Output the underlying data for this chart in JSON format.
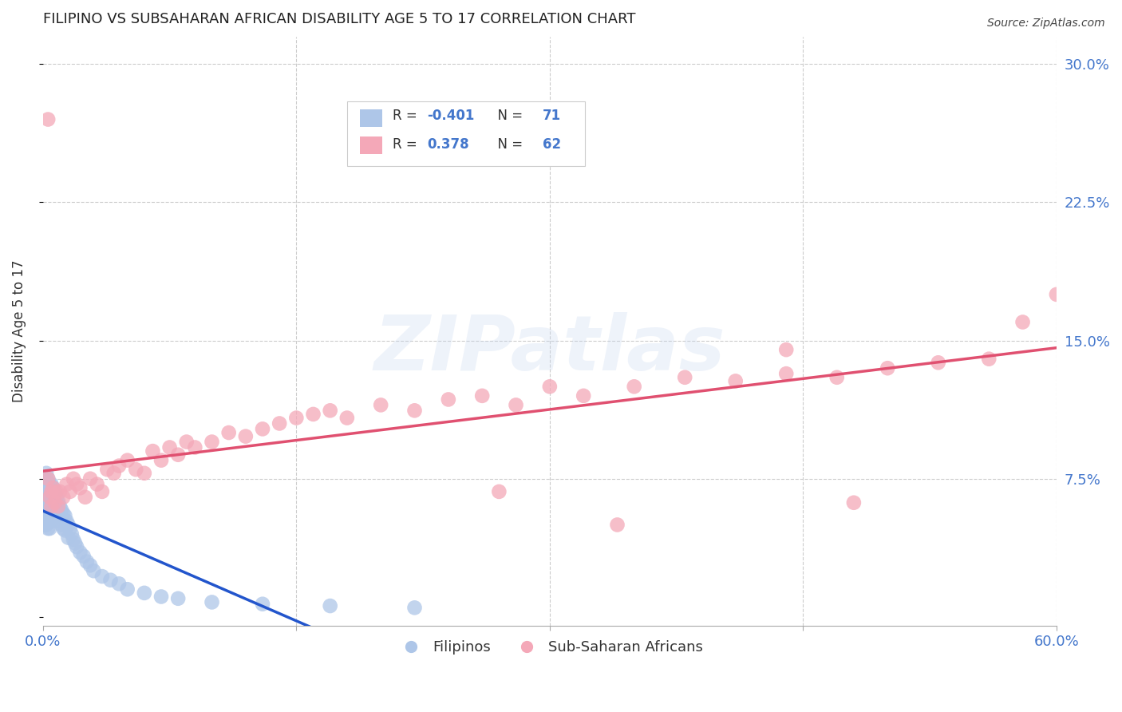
{
  "title": "FILIPINO VS SUBSAHARAN AFRICAN DISABILITY AGE 5 TO 17 CORRELATION CHART",
  "source": "Source: ZipAtlas.com",
  "ylabel": "Disability Age 5 to 17",
  "yticks": [
    0.0,
    0.075,
    0.15,
    0.225,
    0.3
  ],
  "ytick_labels": [
    "",
    "7.5%",
    "15.0%",
    "22.5%",
    "30.0%"
  ],
  "xlim": [
    0.0,
    0.6
  ],
  "ylim": [
    -0.005,
    0.315
  ],
  "grid_color": "#cccccc",
  "background_color": "#ffffff",
  "filipino_color": "#aec6e8",
  "subsaharan_color": "#f4a8b8",
  "filipino_line_color": "#2255cc",
  "subsaharan_line_color": "#e05070",
  "filipino_R": -0.401,
  "filipino_N": 71,
  "subsaharan_R": 0.378,
  "subsaharan_N": 62,
  "title_color": "#222222",
  "axis_label_color": "#4477cc",
  "watermark": "ZIPatlas",
  "filipino_x": [
    0.001,
    0.001,
    0.001,
    0.001,
    0.001,
    0.002,
    0.002,
    0.002,
    0.002,
    0.002,
    0.002,
    0.003,
    0.003,
    0.003,
    0.003,
    0.003,
    0.003,
    0.004,
    0.004,
    0.004,
    0.004,
    0.004,
    0.005,
    0.005,
    0.005,
    0.005,
    0.005,
    0.006,
    0.006,
    0.006,
    0.006,
    0.007,
    0.007,
    0.007,
    0.008,
    0.008,
    0.008,
    0.009,
    0.009,
    0.01,
    0.01,
    0.011,
    0.011,
    0.012,
    0.012,
    0.013,
    0.013,
    0.014,
    0.015,
    0.015,
    0.016,
    0.017,
    0.018,
    0.019,
    0.02,
    0.022,
    0.024,
    0.026,
    0.028,
    0.03,
    0.035,
    0.04,
    0.045,
    0.05,
    0.06,
    0.07,
    0.08,
    0.1,
    0.13,
    0.17,
    0.22
  ],
  "filipino_y": [
    0.075,
    0.068,
    0.062,
    0.055,
    0.05,
    0.078,
    0.07,
    0.065,
    0.06,
    0.055,
    0.05,
    0.075,
    0.07,
    0.065,
    0.06,
    0.055,
    0.048,
    0.072,
    0.065,
    0.06,
    0.055,
    0.048,
    0.072,
    0.068,
    0.063,
    0.058,
    0.052,
    0.07,
    0.065,
    0.06,
    0.055,
    0.068,
    0.063,
    0.057,
    0.065,
    0.06,
    0.055,
    0.063,
    0.055,
    0.06,
    0.052,
    0.058,
    0.05,
    0.056,
    0.048,
    0.055,
    0.047,
    0.052,
    0.05,
    0.043,
    0.048,
    0.045,
    0.042,
    0.04,
    0.038,
    0.035,
    0.033,
    0.03,
    0.028,
    0.025,
    0.022,
    0.02,
    0.018,
    0.015,
    0.013,
    0.011,
    0.01,
    0.008,
    0.007,
    0.006,
    0.005
  ],
  "subsaharan_x": [
    0.003,
    0.004,
    0.005,
    0.006,
    0.007,
    0.008,
    0.009,
    0.01,
    0.012,
    0.014,
    0.016,
    0.018,
    0.02,
    0.022,
    0.025,
    0.028,
    0.032,
    0.035,
    0.038,
    0.042,
    0.045,
    0.05,
    0.055,
    0.06,
    0.065,
    0.07,
    0.075,
    0.08,
    0.085,
    0.09,
    0.1,
    0.11,
    0.12,
    0.13,
    0.14,
    0.15,
    0.16,
    0.17,
    0.18,
    0.2,
    0.22,
    0.24,
    0.26,
    0.28,
    0.3,
    0.32,
    0.35,
    0.38,
    0.41,
    0.44,
    0.47,
    0.5,
    0.53,
    0.56,
    0.27,
    0.34,
    0.48,
    0.003,
    0.44,
    0.005,
    0.6,
    0.58
  ],
  "subsaharan_y": [
    0.27,
    0.065,
    0.06,
    0.07,
    0.062,
    0.068,
    0.06,
    0.068,
    0.065,
    0.072,
    0.068,
    0.075,
    0.072,
    0.07,
    0.065,
    0.075,
    0.072,
    0.068,
    0.08,
    0.078,
    0.082,
    0.085,
    0.08,
    0.078,
    0.09,
    0.085,
    0.092,
    0.088,
    0.095,
    0.092,
    0.095,
    0.1,
    0.098,
    0.102,
    0.105,
    0.108,
    0.11,
    0.112,
    0.108,
    0.115,
    0.112,
    0.118,
    0.12,
    0.115,
    0.125,
    0.12,
    0.125,
    0.13,
    0.128,
    0.132,
    0.13,
    0.135,
    0.138,
    0.14,
    0.068,
    0.05,
    0.062,
    0.075,
    0.145,
    0.068,
    0.175,
    0.16
  ]
}
